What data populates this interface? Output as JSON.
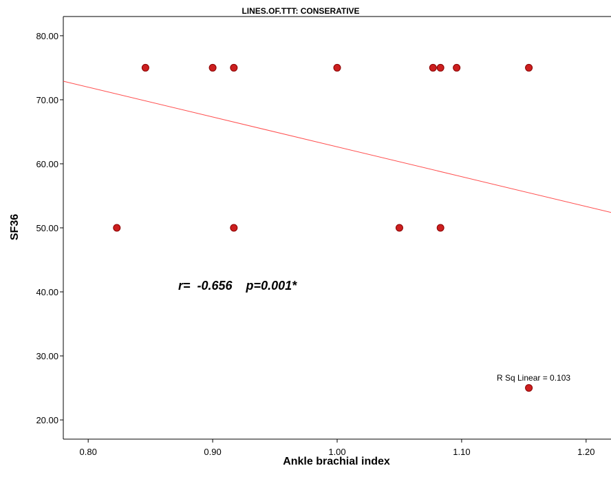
{
  "chart_data": {
    "type": "scatter",
    "title": "LINES.OF.TTT: CONSERATIVE",
    "xlabel": "Ankle brachial index",
    "ylabel": "SF36",
    "xlim": [
      0.78,
      1.22
    ],
    "ylim": [
      17.0,
      83.0
    ],
    "xticks": [
      0.8,
      0.9,
      1.0,
      1.1,
      1.2
    ],
    "xtick_labels": [
      "0.80",
      "0.90",
      "1.00",
      "1.10",
      "1.20"
    ],
    "yticks": [
      20,
      30,
      40,
      50,
      60,
      70,
      80
    ],
    "ytick_labels": [
      "20.00",
      "30.00",
      "40.00",
      "50.00",
      "60.00",
      "70.00",
      "80.00"
    ],
    "grid": false,
    "points": [
      {
        "x": 0.846,
        "y": 75
      },
      {
        "x": 0.9,
        "y": 75
      },
      {
        "x": 0.917,
        "y": 75
      },
      {
        "x": 1.0,
        "y": 75
      },
      {
        "x": 1.077,
        "y": 75
      },
      {
        "x": 1.083,
        "y": 75
      },
      {
        "x": 1.096,
        "y": 75
      },
      {
        "x": 1.154,
        "y": 75
      },
      {
        "x": 0.823,
        "y": 50
      },
      {
        "x": 0.917,
        "y": 50
      },
      {
        "x": 1.05,
        "y": 50
      },
      {
        "x": 1.083,
        "y": 50
      },
      {
        "x": 1.154,
        "y": 25
      }
    ],
    "fit_line": {
      "x": [
        0.78,
        1.22
      ],
      "y": [
        72.9,
        52.4
      ]
    },
    "annotation": "r=  -0.656    p=0.001*",
    "fit_label": "R Sq Linear = 0.103",
    "colors": {
      "point_fill": "#cc1f1f",
      "point_stroke": "#8a0000",
      "fit_line": "#ff4d4d",
      "axis": "#000000"
    }
  }
}
